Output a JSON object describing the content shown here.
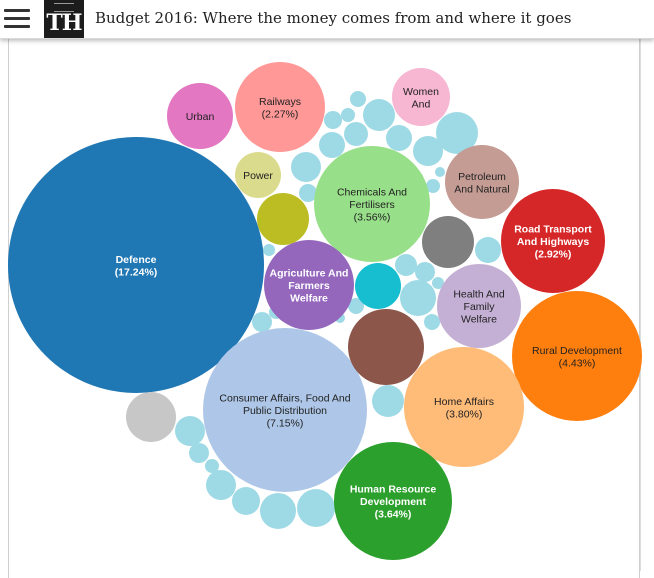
{
  "header": {
    "menu_icon": "hamburger-menu-icon",
    "logo_text": "TH",
    "title": "Budget 2016: Where the money comes from and where it goes"
  },
  "bubbles": [
    {
      "id": "defence",
      "label_lines": [
        "Defence",
        "(17.24%)"
      ],
      "color": "#1f77b4",
      "text_color": "#ffffff",
      "bold": true
    },
    {
      "id": "consumer-affairs",
      "label_lines": [
        "Consumer Affairs, Food And",
        "Public Distribution",
        "(7.15%)"
      ],
      "color": "#aec7e8",
      "text_color": "#222222",
      "bold": false
    },
    {
      "id": "rural-development",
      "label_lines": [
        "Rural Development",
        "(4.43%)"
      ],
      "color": "#ff7f0e",
      "text_color": "#222222",
      "bold": false
    },
    {
      "id": "home-affairs",
      "label_lines": [
        "Home Affairs",
        "(3.80%)"
      ],
      "color": "#ffbb78",
      "text_color": "#222222",
      "bold": false
    },
    {
      "id": "human-resource",
      "label_lines": [
        "Human Resource",
        "Development",
        "(3.64%)"
      ],
      "color": "#2ca02c",
      "text_color": "#ffffff",
      "bold": true
    },
    {
      "id": "chemicals",
      "label_lines": [
        "Chemicals And",
        "Fertilisers",
        "(3.56%)"
      ],
      "color": "#98df8a",
      "text_color": "#222222",
      "bold": false
    },
    {
      "id": "road-transport",
      "label_lines": [
        "Road Transport",
        "And Highways",
        "(2.92%)"
      ],
      "color": "#d62728",
      "text_color": "#ffffff",
      "bold": true
    },
    {
      "id": "railways",
      "label_lines": [
        "Railways",
        "(2.27%)"
      ],
      "color": "#ff9896",
      "text_color": "#222222",
      "bold": false
    },
    {
      "id": "agriculture",
      "label_lines": [
        "Agriculture And",
        "Farmers",
        "Welfare"
      ],
      "color": "#9467bd",
      "text_color": "#ffffff",
      "bold": true
    },
    {
      "id": "health",
      "label_lines": [
        "Health And",
        "Family",
        "Welfare"
      ],
      "color": "#c5b0d5",
      "text_color": "#222222",
      "bold": false
    },
    {
      "id": "petroleum",
      "label_lines": [
        "Petroleum",
        "And Natural"
      ],
      "color": "#c49c94",
      "text_color": "#222222",
      "bold": false
    },
    {
      "id": "urban",
      "label_lines": [
        "Urban"
      ],
      "color": "#e377c2",
      "text_color": "#222222",
      "bold": false
    },
    {
      "id": "women",
      "label_lines": [
        "Women",
        "And"
      ],
      "color": "#f7b6d2",
      "text_color": "#222222",
      "bold": false
    },
    {
      "id": "power",
      "label_lines": [
        "Power"
      ],
      "color": "#dbdb8d",
      "text_color": "#222222",
      "bold": false
    },
    {
      "id": "olive",
      "label_lines": [],
      "color": "#bcbd22",
      "text_color": "#222222",
      "bold": false
    },
    {
      "id": "brown",
      "label_lines": [],
      "color": "#8c564b",
      "text_color": "#222222",
      "bold": false
    },
    {
      "id": "dark-gray",
      "label_lines": [],
      "color": "#7f7f7f",
      "text_color": "#222222",
      "bold": false
    },
    {
      "id": "light-gray",
      "label_lines": [],
      "color": "#c7c7c7",
      "text_color": "#222222",
      "bold": false
    },
    {
      "id": "teal",
      "label_lines": [],
      "color": "#17becf",
      "text_color": "#222222",
      "bold": false
    }
  ],
  "small_bubble_color": "#9edae5"
}
